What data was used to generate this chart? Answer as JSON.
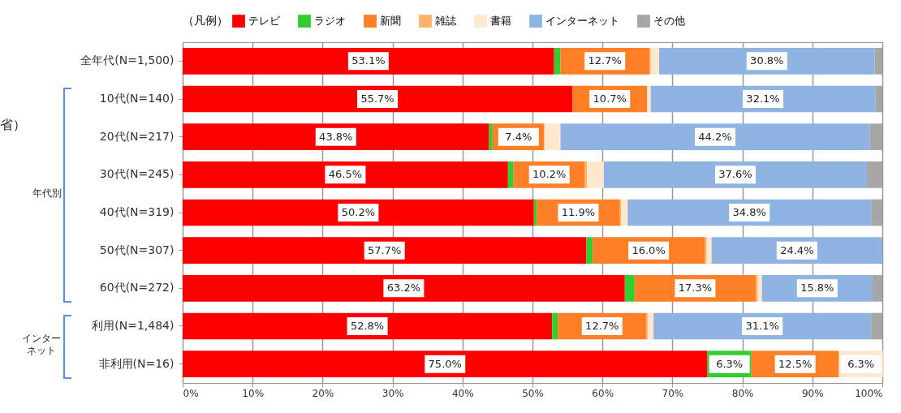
{
  "chart_data": {
    "type": "bar",
    "orientation": "horizontal",
    "stacked": true,
    "legend": "top",
    "legend_title": "（凡例）",
    "grid": "x",
    "categories": [
      "全年代(N=1,500)",
      "10代(N=140)",
      "20代(N=217)",
      "30代(N=245)",
      "40代(N=319)",
      "50代(N=307)",
      "60代(N=272)",
      "利用(N=1,484)",
      "非利用(N=16)"
    ],
    "xlim": [
      0,
      100
    ],
    "xticks": [
      {
        "value": 0,
        "label": "0%"
      },
      {
        "value": 10,
        "label": "10%"
      },
      {
        "value": 20,
        "label": "20%"
      },
      {
        "value": 30,
        "label": "30%"
      },
      {
        "value": 40,
        "label": "40%"
      },
      {
        "value": 50,
        "label": "50%"
      },
      {
        "value": 60,
        "label": "60%"
      },
      {
        "value": 70,
        "label": "70%"
      },
      {
        "value": 80,
        "label": "80%"
      },
      {
        "value": 90,
        "label": "90%"
      },
      {
        "value": 100,
        "label": "100%"
      }
    ],
    "series": [
      {
        "name": "テレビ",
        "color": "#ff0000",
        "values": [
          53.1,
          55.7,
          43.8,
          46.5,
          50.2,
          57.7,
          63.2,
          52.8,
          75.0
        ],
        "value_labels": [
          "53.1%",
          "55.7%",
          "43.8%",
          "46.5%",
          "50.2%",
          "57.7%",
          "63.2%",
          "52.8%",
          "75.0%"
        ]
      },
      {
        "name": "ラジオ",
        "color": "#33cc33",
        "values": [
          0.9,
          0,
          0.5,
          0.8,
          0.4,
          0.9,
          1.4,
          0.8,
          6.3
        ],
        "value_labels": [
          null,
          null,
          null,
          null,
          null,
          null,
          null,
          null,
          "6.3%"
        ]
      },
      {
        "name": "新聞",
        "color": "#ff7f27",
        "values": [
          12.7,
          10.7,
          7.4,
          10.2,
          11.9,
          16.0,
          17.3,
          12.7,
          12.5
        ],
        "value_labels": [
          "12.7%",
          "10.7%",
          "7.4%",
          "10.2%",
          "11.9%",
          "16.0%",
          "17.3%",
          "12.7%",
          "12.5%"
        ]
      },
      {
        "name": "雑誌",
        "color": "#ffb366",
        "values": [
          0.2,
          0,
          0,
          0.3,
          0.2,
          0.3,
          0.3,
          0.2,
          0
        ],
        "value_labels": [
          null,
          null,
          null,
          null,
          null,
          null,
          null,
          null,
          null
        ]
      },
      {
        "name": "書籍",
        "color": "#ffe8d0",
        "values": [
          1.2,
          0.5,
          2.3,
          2.4,
          0.9,
          0.7,
          0.6,
          0.8,
          6.3
        ],
        "value_labels": [
          null,
          null,
          null,
          null,
          null,
          null,
          null,
          null,
          "6.3%"
        ]
      },
      {
        "name": "インターネット",
        "color": "#8fb4e3",
        "values": [
          30.8,
          32.1,
          44.2,
          37.6,
          34.8,
          24.4,
          15.8,
          31.1,
          0
        ],
        "value_labels": [
          "30.8%",
          "32.1%",
          "44.2%",
          "37.6%",
          "34.8%",
          "24.4%",
          "15.8%",
          "31.1%",
          null
        ]
      },
      {
        "name": "その他",
        "color": "#a6a6a6",
        "values": [
          1.1,
          1.0,
          1.8,
          2.2,
          1.6,
          0,
          1.4,
          1.6,
          0
        ],
        "value_labels": [
          null,
          null,
          null,
          null,
          null,
          null,
          null,
          null,
          null
        ]
      }
    ],
    "annotations": [
      "年代別",
      "インターネット",
      "省）"
    ]
  }
}
